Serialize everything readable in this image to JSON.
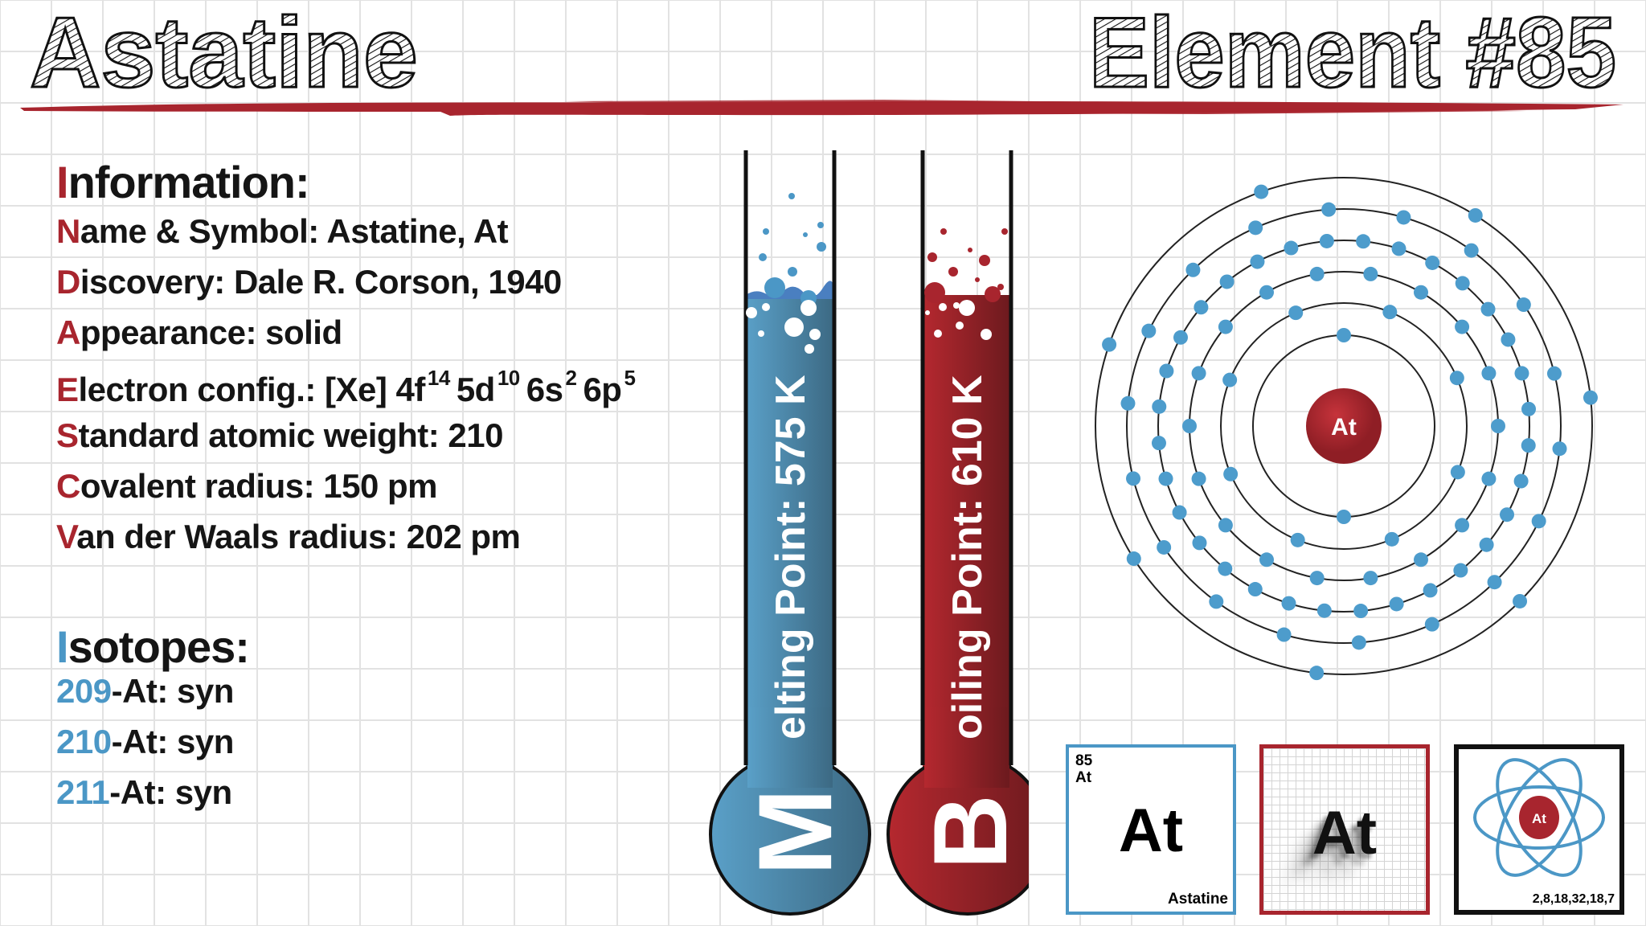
{
  "header": {
    "title": "Astatine",
    "element_label": "Element #85"
  },
  "information": {
    "heading": "Information:",
    "lines": [
      "Name & Symbol: Astatine, At",
      "Discovery: Dale R. Corson, 1940",
      "Appearance: solid",
      "Standard atomic weight: 210",
      "Covalent radius: 150 pm",
      "Van der Waals radius: 202 pm"
    ],
    "electron_config": {
      "label": "Electron config.: [Xe]",
      "orbitals": [
        {
          "orbital": "4f",
          "count": "14"
        },
        {
          "orbital": "5d",
          "count": "10"
        },
        {
          "orbital": "6s",
          "count": "2"
        },
        {
          "orbital": "6p",
          "count": "5"
        }
      ]
    }
  },
  "isotopes": {
    "heading": "Isotopes:",
    "items": [
      {
        "mass": "209",
        "rest": "-At: syn"
      },
      {
        "mass": "210",
        "rest": "-At: syn"
      },
      {
        "mass": "211",
        "rest": "-At: syn"
      }
    ]
  },
  "thermometers": {
    "melting": {
      "initial": "M",
      "rest": "elting Point: 575 K",
      "color": "#4b8fb5"
    },
    "boiling": {
      "initial": "B",
      "rest": "oiling Point: 610 K",
      "color": "#a8252e"
    }
  },
  "atom": {
    "symbol": "At",
    "shells": [
      2,
      8,
      18,
      32,
      18,
      7
    ],
    "electron_color": "#4d9ccc",
    "nucleus_color": "#a8252e"
  },
  "cards": {
    "tile": {
      "number": "85",
      "symbol_small": "At",
      "symbol": "At",
      "name": "Astatine"
    },
    "shadow": {
      "symbol": "At"
    },
    "orbit": {
      "symbol": "At",
      "configuration": "2,8,18,32,18,7"
    }
  },
  "colors": {
    "accent_red": "#a8252e",
    "accent_blue": "#4b97c6"
  }
}
